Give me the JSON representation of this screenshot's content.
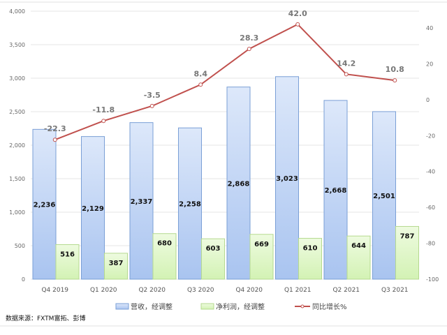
{
  "chart_data": {
    "type": "bar",
    "categories": [
      "Q4 2019",
      "Q1 2020",
      "Q2 2020",
      "Q3 2020",
      "Q4 2020",
      "Q1 2021",
      "Q2 2021",
      "Q3 2021"
    ],
    "series": [
      {
        "name": "营收，经调整",
        "type": "bar",
        "axis": "left",
        "color": "#c6d9f7",
        "values": [
          2236,
          2129,
          2337,
          2258,
          2868,
          3023,
          2668,
          2501
        ],
        "labels": [
          "2,236",
          "2,129",
          "2,337",
          "2,258",
          "2,868",
          "3,023",
          "2,668",
          "2,501"
        ]
      },
      {
        "name": "净利润，经调整",
        "type": "bar",
        "axis": "left",
        "color": "#d9f5bf",
        "values": [
          516,
          387,
          680,
          603,
          669,
          610,
          644,
          787
        ],
        "labels": [
          "516",
          "387",
          "680",
          "603",
          "669",
          "610",
          "644",
          "787"
        ]
      },
      {
        "name": "同比增长%",
        "type": "line",
        "axis": "right",
        "color": "#c0504d",
        "values": [
          -22.3,
          -11.8,
          -3.5,
          8.4,
          28.3,
          42.0,
          14.2,
          10.8
        ],
        "labels": [
          "-22.3",
          "-11.8",
          "-3.5",
          "8.4",
          "28.3",
          "42.0",
          "14.2",
          "10.8"
        ]
      }
    ],
    "ylim": [
      0,
      4000
    ],
    "yticks": [
      "0",
      "500",
      "1,000",
      "1,500",
      "2,000",
      "2,500",
      "3,000",
      "3,500",
      "4,000"
    ],
    "y2lim": [
      -100,
      40
    ],
    "y2ticks": [
      "-100",
      "-80",
      "-60",
      "-40",
      "-20",
      "0",
      "20",
      "40"
    ],
    "grid": true,
    "legend": "bottom"
  },
  "source": "数据来源：FXTM富拓、彭博"
}
